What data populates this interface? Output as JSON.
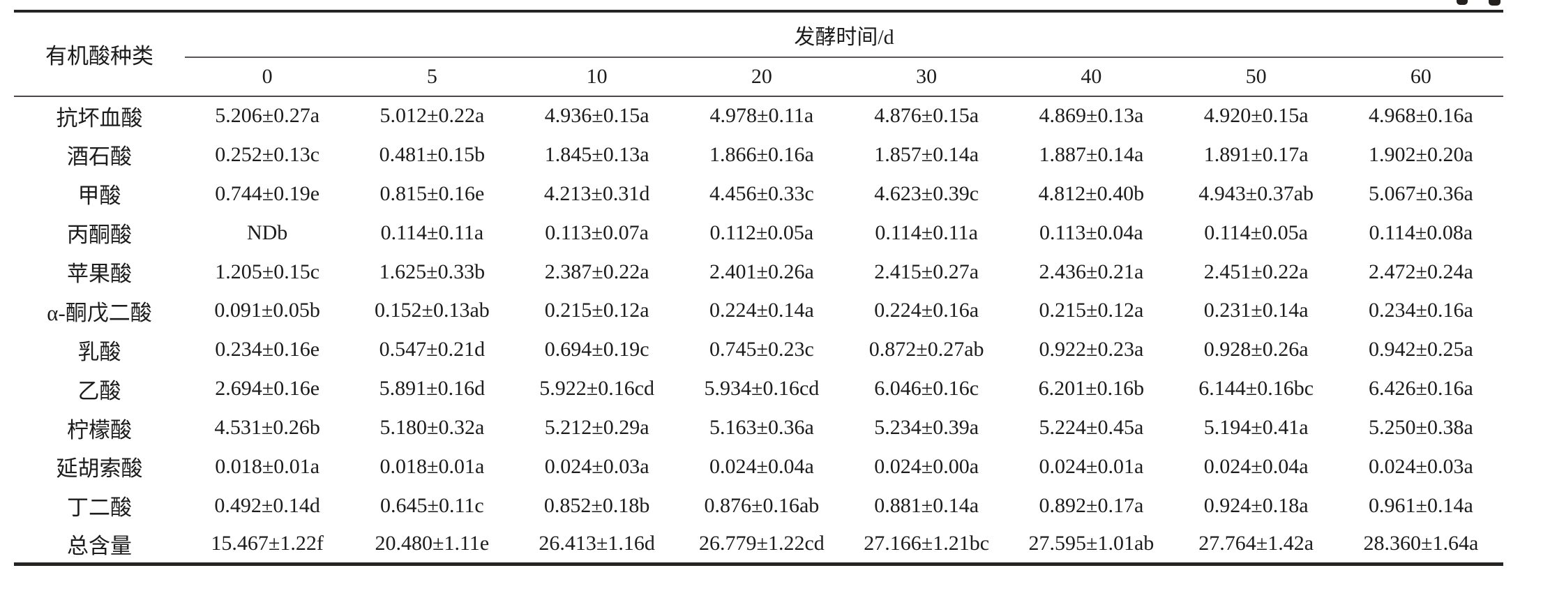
{
  "table": {
    "header": {
      "stub": "有机酸种类",
      "group": "发酵时间/d",
      "columns": [
        "0",
        "5",
        "10",
        "20",
        "30",
        "40",
        "50",
        "60"
      ]
    },
    "rows": [
      {
        "label": "抗坏血酸",
        "cells": [
          "5.206±0.27a",
          "5.012±0.22a",
          "4.936±0.15a",
          "4.978±0.11a",
          "4.876±0.15a",
          "4.869±0.13a",
          "4.920±0.15a",
          "4.968±0.16a"
        ]
      },
      {
        "label": "酒石酸",
        "cells": [
          "0.252±0.13c",
          "0.481±0.15b",
          "1.845±0.13a",
          "1.866±0.16a",
          "1.857±0.14a",
          "1.887±0.14a",
          "1.891±0.17a",
          "1.902±0.20a"
        ]
      },
      {
        "label": "甲酸",
        "cells": [
          "0.744±0.19e",
          "0.815±0.16e",
          "4.213±0.31d",
          "4.456±0.33c",
          "4.623±0.39c",
          "4.812±0.40b",
          "4.943±0.37ab",
          "5.067±0.36a"
        ]
      },
      {
        "label": "丙酮酸",
        "cells": [
          "NDb",
          "0.114±0.11a",
          "0.113±0.07a",
          "0.112±0.05a",
          "0.114±0.11a",
          "0.113±0.04a",
          "0.114±0.05a",
          "0.114±0.08a"
        ]
      },
      {
        "label": "苹果酸",
        "cells": [
          "1.205±0.15c",
          "1.625±0.33b",
          "2.387±0.22a",
          "2.401±0.26a",
          "2.415±0.27a",
          "2.436±0.21a",
          "2.451±0.22a",
          "2.472±0.24a"
        ]
      },
      {
        "label": "α-酮戊二酸",
        "cells": [
          "0.091±0.05b",
          "0.152±0.13ab",
          "0.215±0.12a",
          "0.224±0.14a",
          "0.224±0.16a",
          "0.215±0.12a",
          "0.231±0.14a",
          "0.234±0.16a"
        ]
      },
      {
        "label": "乳酸",
        "cells": [
          "0.234±0.16e",
          "0.547±0.21d",
          "0.694±0.19c",
          "0.745±0.23c",
          "0.872±0.27ab",
          "0.922±0.23a",
          "0.928±0.26a",
          "0.942±0.25a"
        ]
      },
      {
        "label": "乙酸",
        "cells": [
          "2.694±0.16e",
          "5.891±0.16d",
          "5.922±0.16cd",
          "5.934±0.16cd",
          "6.046±0.16c",
          "6.201±0.16b",
          "6.144±0.16bc",
          "6.426±0.16a"
        ]
      },
      {
        "label": "柠檬酸",
        "cells": [
          "4.531±0.26b",
          "5.180±0.32a",
          "5.212±0.29a",
          "5.163±0.36a",
          "5.234±0.39a",
          "5.224±0.45a",
          "5.194±0.41a",
          "5.250±0.38a"
        ]
      },
      {
        "label": "延胡索酸",
        "cells": [
          "0.018±0.01a",
          "0.018±0.01a",
          "0.024±0.03a",
          "0.024±0.04a",
          "0.024±0.00a",
          "0.024±0.01a",
          "0.024±0.04a",
          "0.024±0.03a"
        ]
      },
      {
        "label": "丁二酸",
        "cells": [
          "0.492±0.14d",
          "0.645±0.11c",
          "0.852±0.18b",
          "0.876±0.16ab",
          "0.881±0.14a",
          "0.892±0.17a",
          "0.924±0.18a",
          "0.961±0.14a"
        ]
      },
      {
        "label": "总含量",
        "cells": [
          "15.467±1.22f",
          "20.480±1.11e",
          "26.413±1.16d",
          "26.779±1.22cd",
          "27.166±1.21bc",
          "27.595±1.01ab",
          "27.764±1.42a",
          "28.360±1.64a"
        ]
      }
    ]
  },
  "colors": {
    "text": "#1c1c1c",
    "rule_heavy": "#262323",
    "rule_light": "#4c4848"
  }
}
